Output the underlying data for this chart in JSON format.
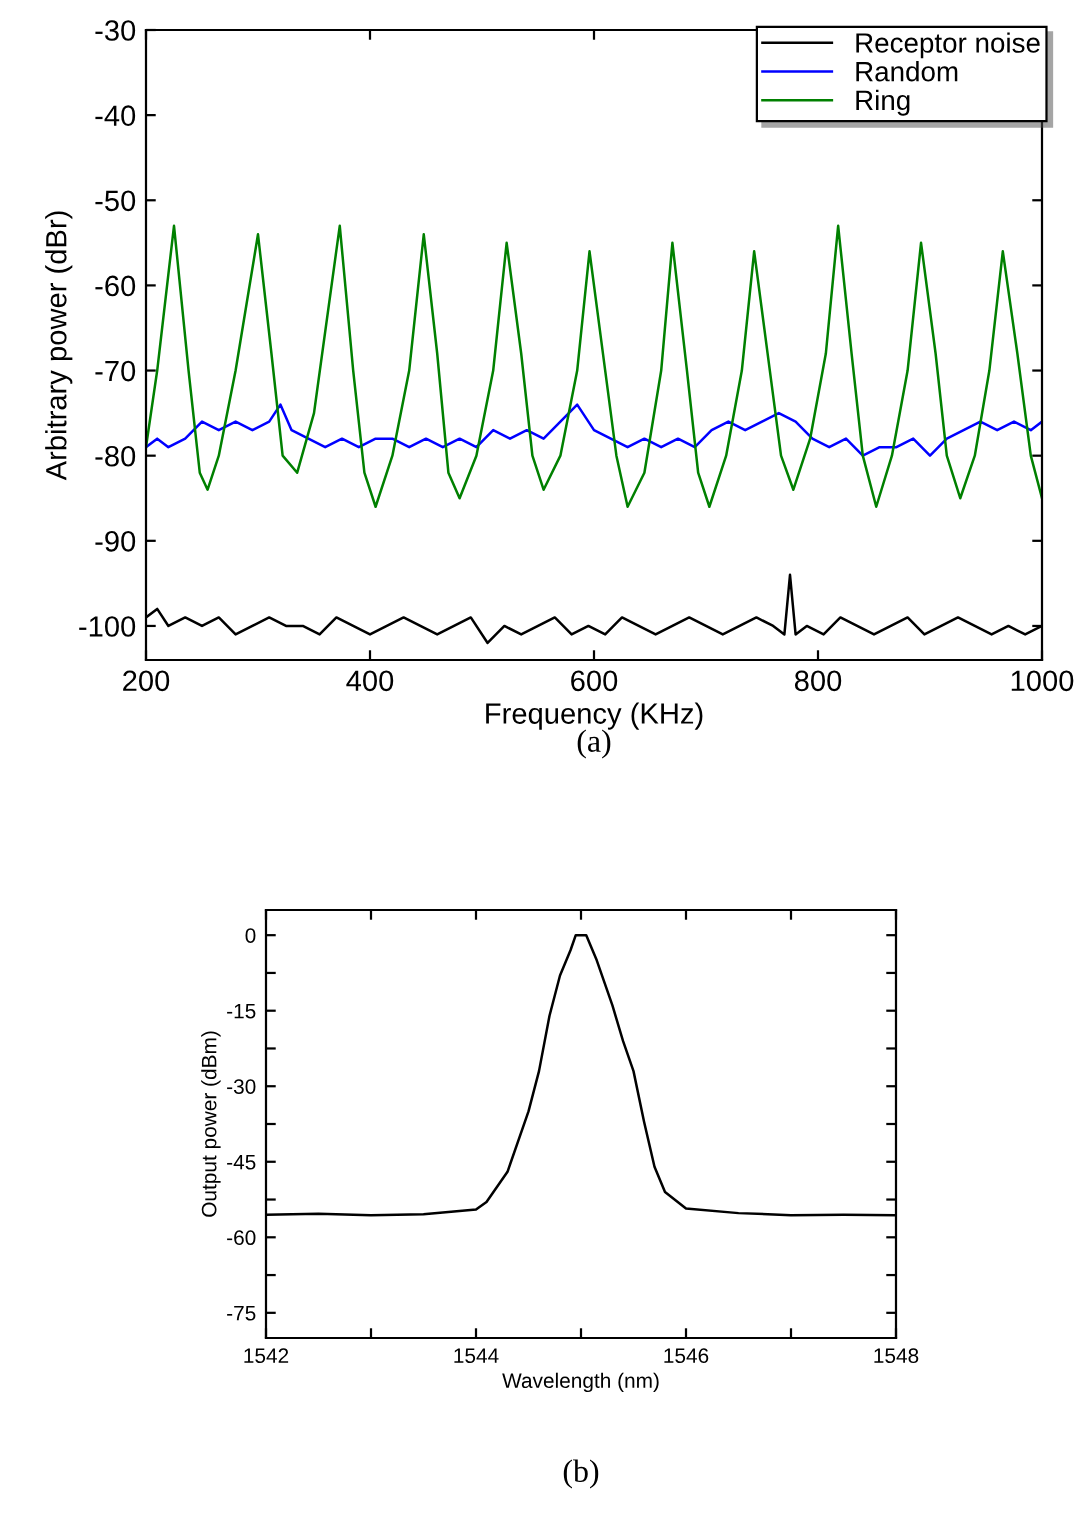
{
  "chart_data": [
    {
      "type": "line",
      "xlabel": "Frequency (KHz)",
      "ylabel": "Arbitrary power (dBr)",
      "annotations": [
        "(a)"
      ],
      "xlim": [
        200,
        1000
      ],
      "ylim": [
        -104,
        -30
      ],
      "xticks": [
        200,
        400,
        600,
        800,
        1000
      ],
      "yticks": [
        -30,
        -40,
        -50,
        -60,
        -70,
        -80,
        -90,
        -100
      ],
      "grid": false,
      "legend": "top right",
      "line_style": "solid",
      "marker": "none",
      "series": [
        {
          "name": "Receptor noise",
          "color": "#000000",
          "x": [
            200,
            210,
            220,
            235,
            250,
            265,
            280,
            295,
            310,
            325,
            340,
            355,
            370,
            385,
            400,
            415,
            430,
            445,
            460,
            475,
            490,
            505,
            520,
            535,
            550,
            565,
            580,
            595,
            610,
            625,
            640,
            655,
            670,
            685,
            700,
            715,
            730,
            745,
            760,
            770,
            775,
            780,
            790,
            805,
            820,
            835,
            850,
            865,
            880,
            895,
            910,
            925,
            940,
            955,
            970,
            985,
            1000
          ],
          "values": [
            -99,
            -98,
            -100,
            -99,
            -100,
            -99,
            -101,
            -100,
            -99,
            -100,
            -100,
            -101,
            -99,
            -100,
            -101,
            -100,
            -99,
            -100,
            -101,
            -100,
            -99,
            -102,
            -100,
            -101,
            -100,
            -99,
            -101,
            -100,
            -101,
            -99,
            -100,
            -101,
            -100,
            -99,
            -100,
            -101,
            -100,
            -99,
            -100,
            -101,
            -94,
            -101,
            -100,
            -101,
            -99,
            -100,
            -101,
            -100,
            -99,
            -101,
            -100,
            -99,
            -100,
            -101,
            -100,
            -101,
            -100
          ]
        },
        {
          "name": "Random",
          "color": "#0000ff",
          "x": [
            200,
            210,
            220,
            235,
            250,
            265,
            280,
            295,
            310,
            320,
            330,
            345,
            360,
            375,
            390,
            405,
            420,
            435,
            450,
            465,
            480,
            495,
            510,
            525,
            540,
            555,
            570,
            585,
            600,
            615,
            630,
            645,
            660,
            675,
            690,
            705,
            720,
            735,
            750,
            765,
            780,
            795,
            810,
            825,
            840,
            855,
            870,
            885,
            900,
            915,
            930,
            945,
            960,
            975,
            990,
            1000
          ],
          "values": [
            -79,
            -78,
            -79,
            -78,
            -76,
            -77,
            -76,
            -77,
            -76,
            -74,
            -77,
            -78,
            -79,
            -78,
            -79,
            -78,
            -78,
            -79,
            -78,
            -79,
            -78,
            -79,
            -77,
            -78,
            -77,
            -78,
            -76,
            -74,
            -77,
            -78,
            -79,
            -78,
            -79,
            -78,
            -79,
            -77,
            -76,
            -77,
            -76,
            -75,
            -76,
            -78,
            -79,
            -78,
            -80,
            -79,
            -79,
            -78,
            -80,
            -78,
            -77,
            -76,
            -77,
            -76,
            -77,
            -76
          ]
        },
        {
          "name": "Ring",
          "color": "#008000",
          "x": [
            200,
            210,
            225,
            238,
            248,
            255,
            265,
            280,
            300,
            312,
            322,
            335,
            350,
            373,
            385,
            395,
            405,
            420,
            435,
            448,
            460,
            470,
            480,
            495,
            510,
            522,
            535,
            545,
            555,
            570,
            585,
            596,
            610,
            620,
            630,
            645,
            660,
            670,
            683,
            693,
            703,
            718,
            732,
            743,
            757,
            767,
            778,
            793,
            807,
            818,
            830,
            840,
            852,
            866,
            880,
            892,
            905,
            915,
            927,
            940,
            953,
            965,
            978,
            990,
            1000
          ],
          "values": [
            -79,
            -70,
            -53,
            -70,
            -82,
            -84,
            -80,
            -70,
            -54,
            -68,
            -80,
            -82,
            -75,
            -53,
            -70,
            -82,
            -86,
            -80,
            -70,
            -54,
            -68,
            -82,
            -85,
            -80,
            -70,
            -55,
            -68,
            -80,
            -84,
            -80,
            -70,
            -56,
            -70,
            -80,
            -86,
            -82,
            -70,
            -55,
            -70,
            -82,
            -86,
            -80,
            -70,
            -56,
            -70,
            -80,
            -84,
            -78,
            -68,
            -53,
            -68,
            -80,
            -86,
            -80,
            -70,
            -55,
            -68,
            -80,
            -85,
            -80,
            -70,
            -56,
            -68,
            -80,
            -85
          ]
        }
      ]
    },
    {
      "type": "line",
      "xlabel": "Wavelength (nm)",
      "ylabel": "Output power (dBm)",
      "annotations": [
        "(b)"
      ],
      "xlim": [
        1542,
        1548
      ],
      "ylim": [
        -80,
        5
      ],
      "xticks": [
        1542,
        {
          "value": 1543,
          "label": null
        },
        1544,
        {
          "value": 1545,
          "label": null
        },
        1546,
        {
          "value": 1547,
          "label": null
        },
        1548
      ],
      "yticks": [
        0,
        {
          "value": -7.5,
          "label": null
        },
        -15,
        {
          "value": -22.5,
          "label": null
        },
        -30,
        {
          "value": -37.5,
          "label": null
        },
        -45,
        {
          "value": -52.5,
          "label": null
        },
        -60,
        {
          "value": -67.5,
          "label": null
        },
        -75
      ],
      "grid": false,
      "legend": false,
      "line_style": "solid",
      "marker": "none",
      "series": [
        {
          "color": "#000000",
          "x": [
            1542,
            1542.5,
            1543,
            1543.5,
            1544,
            1544.1,
            1544.3,
            1544.5,
            1544.6,
            1544.7,
            1544.8,
            1544.9,
            1544.95,
            1545.05,
            1545.15,
            1545.3,
            1545.4,
            1545.5,
            1545.6,
            1545.7,
            1545.8,
            1546,
            1546.5,
            1547,
            1547.5,
            1548
          ],
          "values": [
            -55.5,
            -55.3,
            -55.6,
            -55.4,
            -54.5,
            -53,
            -47,
            -35,
            -27,
            -16,
            -8,
            -3,
            0,
            0,
            -5,
            -14,
            -21,
            -27,
            -37,
            -46,
            -51,
            -54.3,
            -55.2,
            -55.6,
            -55.5,
            -55.6
          ]
        }
      ]
    }
  ]
}
